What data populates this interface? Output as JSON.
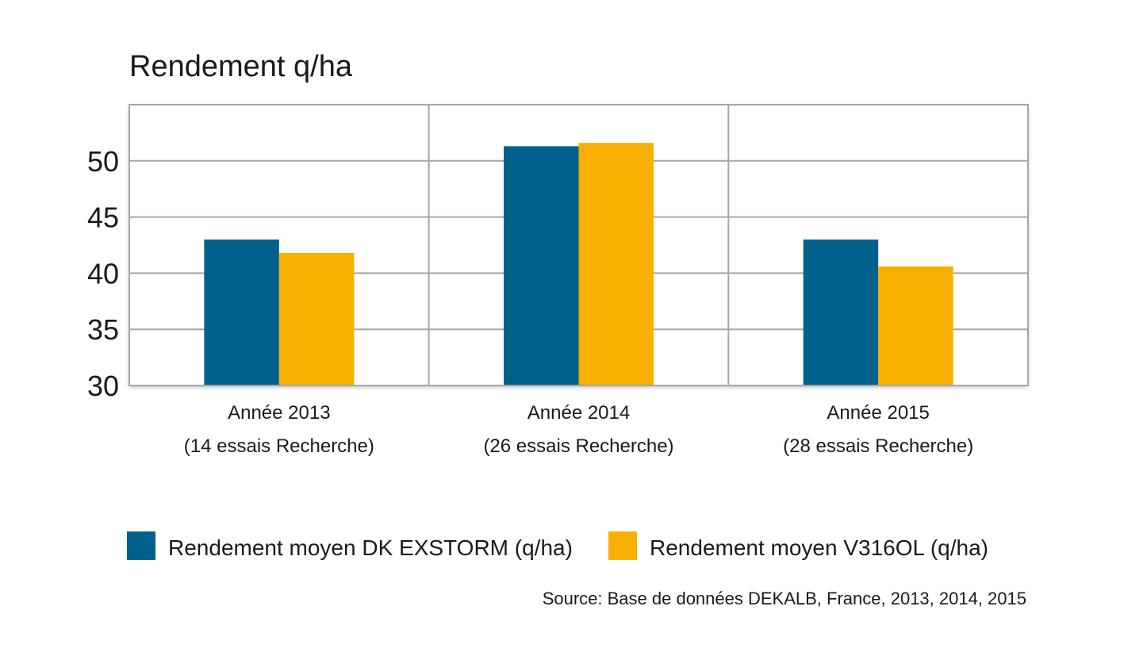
{
  "chart_data": {
    "type": "bar",
    "title": "Rendement q/ha",
    "categories": [
      [
        "Année 2013",
        "(14 essais Recherche)"
      ],
      [
        "Année 2014",
        "(26 essais Recherche)"
      ],
      [
        "Année 2015",
        "(28 essais Recherche)"
      ]
    ],
    "series": [
      {
        "name": "Rendement moyen DK EXSTORM (q/ha)",
        "color": "#00628c",
        "values": [
          43.0,
          51.3,
          43.0
        ]
      },
      {
        "name": "Rendement moyen V316OL (q/ha)",
        "color": "#f7b000",
        "values": [
          41.8,
          51.6,
          40.6
        ]
      }
    ],
    "yticks": [
      "30",
      "35",
      "40",
      "45",
      "50"
    ],
    "ylim": [
      30,
      55
    ],
    "grid": true,
    "legend_position": "bottom",
    "source": "Source: Base de données DEKALB, France, 2013, 2014, 2015"
  }
}
